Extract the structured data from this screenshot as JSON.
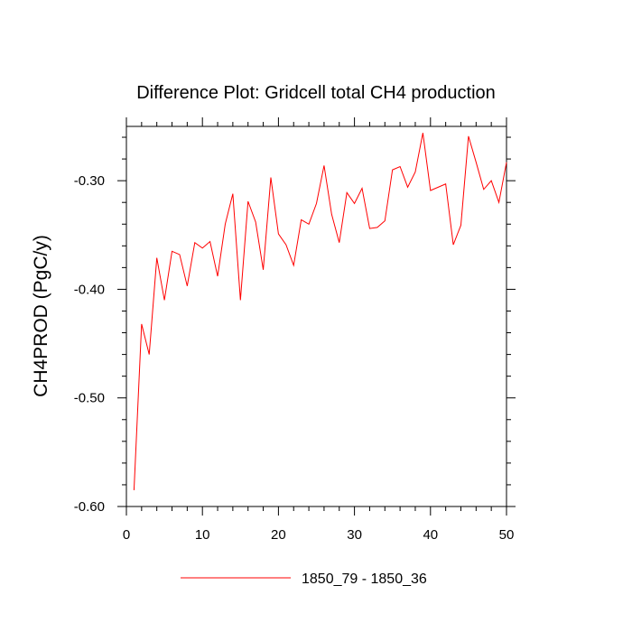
{
  "chart_data": {
    "type": "line",
    "title": "Difference Plot: Gridcell total CH4 production",
    "xlabel": "",
    "ylabel": "CH4PROD  (PgC/y)",
    "xlim": [
      0,
      50
    ],
    "ylim": [
      -0.6,
      -0.25
    ],
    "x_ticks": [
      0,
      10,
      20,
      30,
      40,
      50
    ],
    "x_tick_labels": [
      "0",
      "10",
      "20",
      "30",
      "40",
      "50"
    ],
    "y_ticks": [
      -0.6,
      -0.5,
      -0.4,
      -0.3
    ],
    "y_tick_labels": [
      "-0.60",
      "-0.50",
      "-0.40",
      "-0.30"
    ],
    "grid": false,
    "legend_position": "bottom-center",
    "series": [
      {
        "name": "1850_79 - 1850_36",
        "color": "#ff0000",
        "x": [
          1,
          2,
          3,
          4,
          5,
          6,
          7,
          8,
          9,
          10,
          11,
          12,
          13,
          14,
          15,
          16,
          17,
          18,
          19,
          20,
          21,
          22,
          23,
          24,
          25,
          26,
          27,
          28,
          29,
          30,
          31,
          32,
          33,
          34,
          35,
          36,
          37,
          38,
          39,
          40,
          41,
          42,
          43,
          44,
          45,
          46,
          47,
          48,
          49,
          50
        ],
        "values": [
          -0.585,
          -0.432,
          -0.46,
          -0.371,
          -0.41,
          -0.365,
          -0.368,
          -0.397,
          -0.357,
          -0.362,
          -0.356,
          -0.388,
          -0.34,
          -0.312,
          -0.41,
          -0.319,
          -0.338,
          -0.382,
          -0.297,
          -0.349,
          -0.359,
          -0.378,
          -0.336,
          -0.34,
          -0.321,
          -0.286,
          -0.331,
          -0.357,
          -0.311,
          -0.321,
          -0.307,
          -0.344,
          -0.343,
          -0.337,
          -0.29,
          -0.287,
          -0.306,
          -0.292,
          -0.256,
          -0.309,
          -0.306,
          -0.303,
          -0.359,
          -0.341,
          -0.259,
          -0.283,
          -0.308,
          -0.3,
          -0.32,
          -0.283
        ]
      }
    ]
  }
}
